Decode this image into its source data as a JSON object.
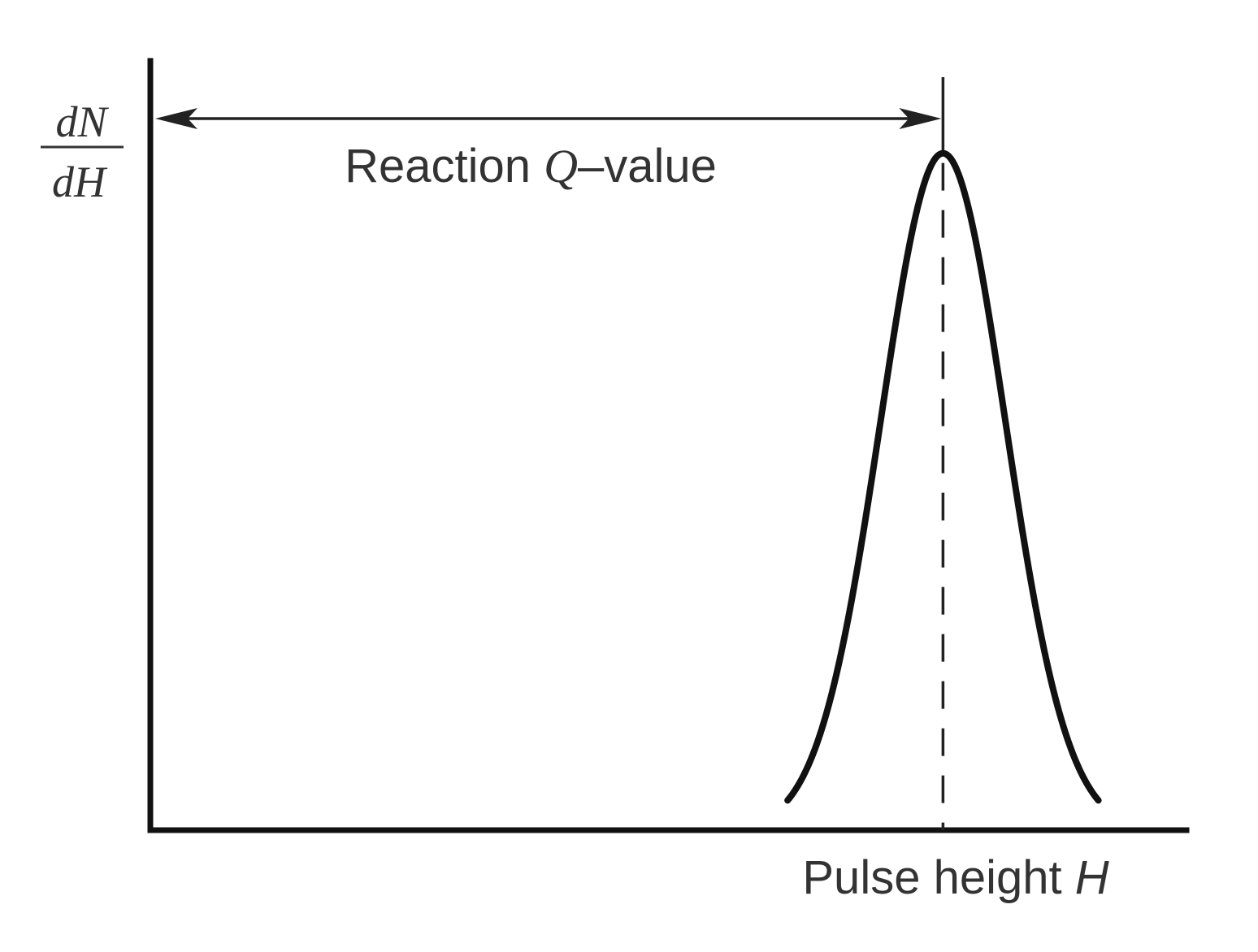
{
  "chart_data": {
    "type": "line",
    "ylabel": {
      "numerator": "dN",
      "denominator": "dH"
    },
    "xlabel": {
      "text": "Pulse height ",
      "variable": "H"
    },
    "annotation": {
      "prefix": "Reaction ",
      "variable": "Q",
      "suffix": "–value"
    },
    "xlim": [
      0,
      1
    ],
    "ylim": [
      0,
      1
    ],
    "series": [
      {
        "peak_position": 0.765,
        "peak_height": 0.88,
        "sigma": 0.06,
        "x_start": 0.615,
        "x_end": 0.915
      }
    ],
    "grid": false,
    "legend": false,
    "colors": {
      "ink": "#111111",
      "label": "#333333",
      "background": "#ffffff"
    }
  }
}
